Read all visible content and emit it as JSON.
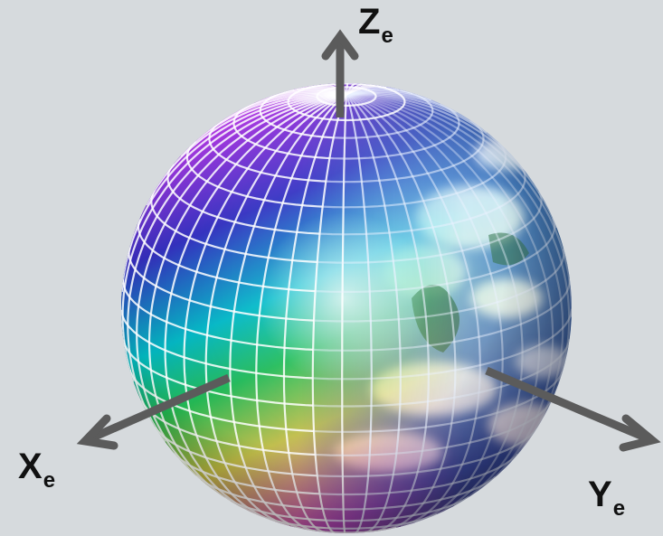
{
  "axes": [
    {
      "id": "z",
      "letter": "Z",
      "subscript": "e"
    },
    {
      "id": "x",
      "letter": "X",
      "subscript": "e"
    },
    {
      "id": "y",
      "letter": "Y",
      "subscript": "e"
    }
  ],
  "colors": {
    "background": "#d6dadd",
    "arrow": "#5b5b5b",
    "label": "#111111",
    "ocean": "#1f4a9a",
    "grid_warm": "#ff80ff",
    "grid_cool": "#66ffdd"
  },
  "globe": {
    "icon": "earth-globe-with-grid",
    "grid_meridians": 24,
    "grid_parallels": 24
  }
}
